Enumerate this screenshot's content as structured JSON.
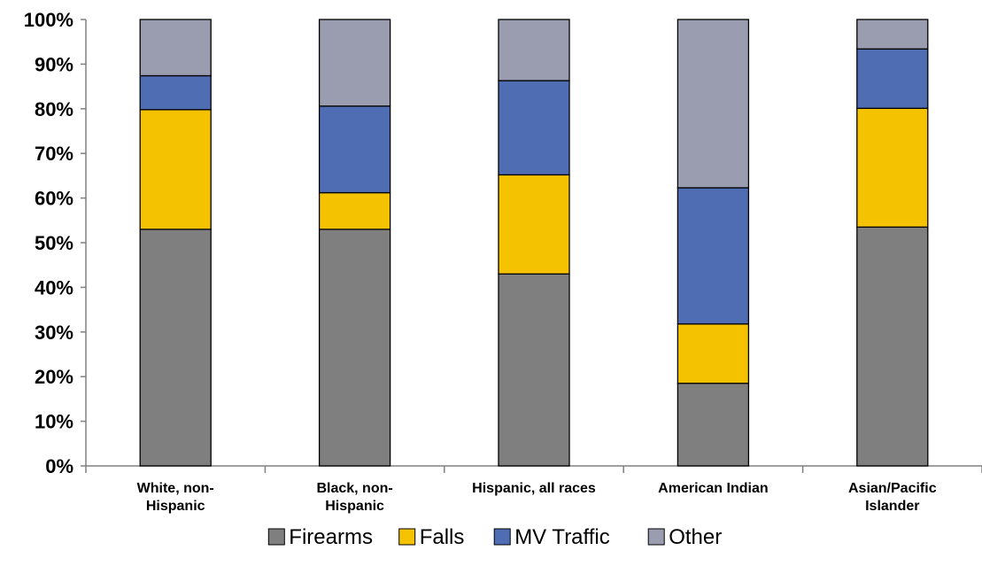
{
  "chart_data": {
    "type": "bar",
    "stacked": true,
    "categories": [
      [
        "White, non-",
        "Hispanic"
      ],
      [
        "Black, non-",
        "Hispanic"
      ],
      [
        "Hispanic, all races"
      ],
      [
        "American Indian"
      ],
      [
        "Asian/Pacific",
        "Islander"
      ]
    ],
    "series": [
      {
        "name": "Firearms",
        "color": "#7f7f7f",
        "values": [
          53,
          53,
          43,
          18.5,
          53.5
        ]
      },
      {
        "name": "Falls",
        "color": "#f5c200",
        "values": [
          26.8,
          8.2,
          22.2,
          13.3,
          26.6
        ]
      },
      {
        "name": "MV Traffic",
        "color": "#4f6db3",
        "values": [
          7.6,
          19.4,
          21.1,
          30.5,
          13.3
        ]
      },
      {
        "name": "Other",
        "color": "#9a9cb0",
        "values": [
          12.6,
          19.4,
          13.7,
          37.7,
          6.6
        ]
      }
    ],
    "ylim": [
      0,
      100
    ],
    "yticks": [
      "0%",
      "10%",
      "20%",
      "30%",
      "40%",
      "50%",
      "60%",
      "70%",
      "80%",
      "90%",
      "100%"
    ],
    "legend_position": "bottom",
    "grid": false,
    "title": "",
    "xlabel": "",
    "ylabel": ""
  }
}
